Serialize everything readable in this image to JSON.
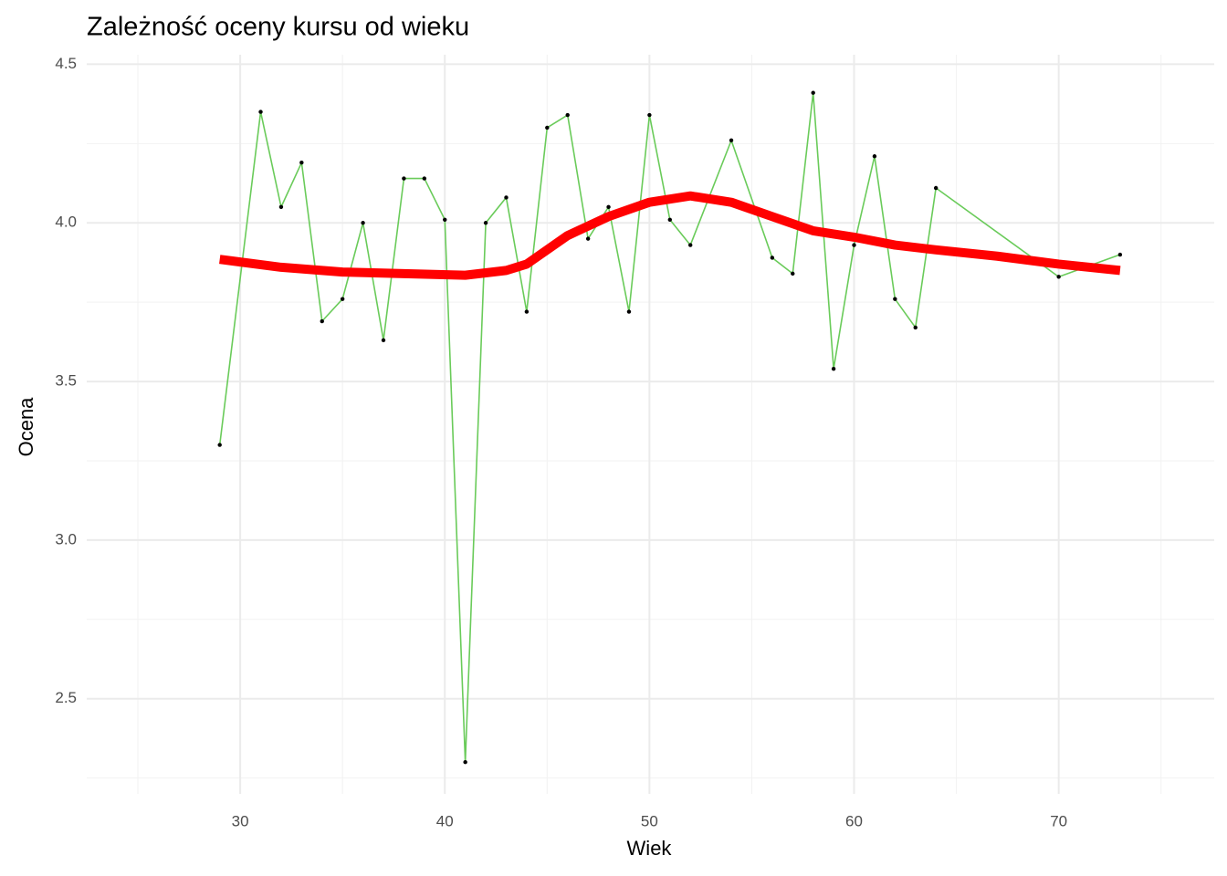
{
  "chart_data": {
    "type": "line",
    "title": "Zależność oceny kursu od wieku",
    "x_label": "Wiek",
    "y_label": "Ocena",
    "xlim": [
      22.5,
      77.6
    ],
    "ylim": [
      2.2,
      4.53
    ],
    "xticks": [
      30,
      40,
      50,
      60,
      70
    ],
    "yticks": [
      2.5,
      3.0,
      3.5,
      4.0,
      4.5
    ],
    "xminor": [
      25,
      35,
      45,
      55,
      65,
      75
    ],
    "yminor": [
      2.25,
      2.75,
      3.25,
      3.75,
      4.25
    ],
    "grid": true,
    "series": [
      {
        "kind": "line",
        "color": "#6acb5a",
        "point_color": "#000000",
        "x": [
          29,
          31,
          32,
          33,
          34,
          35,
          36,
          37,
          38,
          39,
          40,
          41,
          42,
          43,
          44,
          45,
          46,
          47,
          48,
          49,
          50,
          51,
          52,
          54,
          56,
          57,
          58,
          59,
          60,
          61,
          62,
          63,
          64,
          70,
          73
        ],
        "values": [
          3.3,
          4.35,
          4.05,
          4.19,
          3.69,
          3.76,
          4.0,
          3.63,
          4.14,
          4.14,
          4.01,
          2.3,
          4.0,
          4.08,
          3.72,
          4.3,
          4.34,
          3.95,
          4.05,
          3.72,
          4.34,
          4.01,
          3.93,
          4.26,
          3.89,
          3.84,
          4.41,
          3.54,
          3.93,
          4.21,
          3.76,
          3.67,
          4.11,
          3.83,
          3.9
        ]
      },
      {
        "kind": "smooth",
        "color": "#ff0000",
        "x": [
          29,
          32,
          35,
          38,
          41,
          43,
          44,
          46,
          48,
          50,
          52,
          54,
          56,
          58,
          60,
          62,
          64,
          67,
          70,
          73
        ],
        "values": [
          3.885,
          3.86,
          3.845,
          3.84,
          3.835,
          3.85,
          3.87,
          3.96,
          4.02,
          4.065,
          4.085,
          4.065,
          4.02,
          3.975,
          3.955,
          3.93,
          3.915,
          3.895,
          3.87,
          3.85
        ]
      }
    ]
  }
}
